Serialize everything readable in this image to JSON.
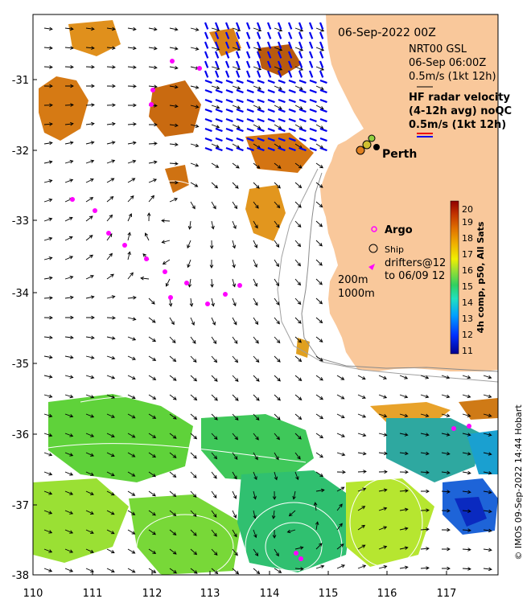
{
  "header": {
    "date": "06-Sep-2022 00Z",
    "nrt_source": "NRT00 GSL",
    "nrt_time": "06-Sep 06:00Z",
    "nrt_scale": "0.5m/s (1kt 12h)"
  },
  "hf_radar": {
    "title_line1": "HF radar velocity",
    "title_line2": "(4-12h avg) noQC",
    "scale": "0.5m/s (1kt 12h)"
  },
  "city": {
    "name": "Perth"
  },
  "legend": {
    "argo": "Argo",
    "ship": "Ship",
    "drifters_line1": "drifters@12",
    "drifters_line2": "to 06/09 12",
    "isobath1": "200m",
    "isobath2": "1000m"
  },
  "colorbar": {
    "title": "4h comp, p50, All Sats",
    "min": 11,
    "max": 20,
    "ticks": [
      "11",
      "12",
      "13",
      "14",
      "15",
      "16",
      "17",
      "18",
      "19",
      "20"
    ]
  },
  "axes": {
    "x_ticks": [
      "110",
      "111",
      "112",
      "113",
      "114",
      "115",
      "116",
      "117"
    ],
    "y_ticks": [
      "-31",
      "-32",
      "-33",
      "-34",
      "-35",
      "-36",
      "-37",
      "-38"
    ],
    "lon_range": [
      110,
      117.9
    ],
    "lat_range": [
      -38,
      -30.2
    ]
  },
  "credit": "© IMOS 09-Sep-2022 14:44 Hobart",
  "colors": {
    "land": "#f9c89b",
    "hf_radar": "#0000ee",
    "argo": "#ff00ff",
    "warm": "#d0700f",
    "cool": "#22cc55"
  }
}
